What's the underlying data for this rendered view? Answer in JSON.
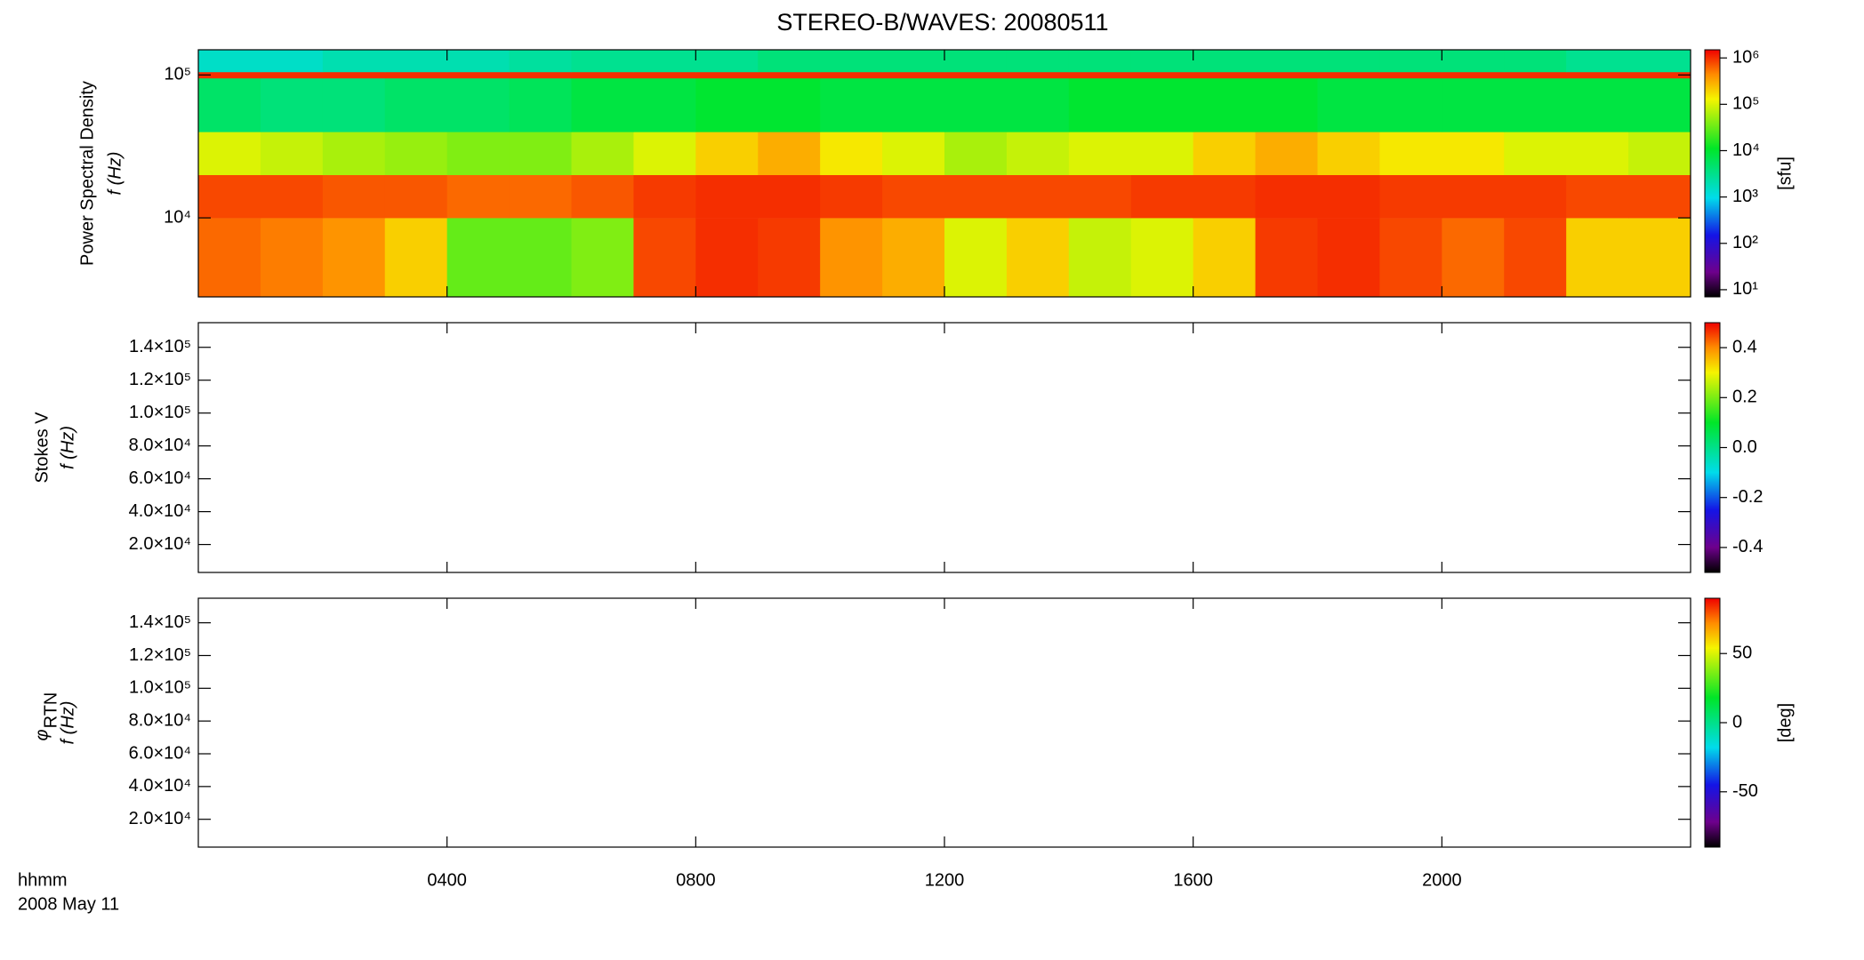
{
  "title": "STEREO-B/WAVES: 20080511",
  "time_axis": {
    "xlim": [
      0,
      24
    ],
    "xticks": [
      {
        "value": 4,
        "label": "0400"
      },
      {
        "value": 8,
        "label": "0800"
      },
      {
        "value": 12,
        "label": "1200"
      },
      {
        "value": 16,
        "label": "1600"
      },
      {
        "value": 20,
        "label": "2000"
      }
    ],
    "label": "hhmm",
    "date": "2008 May 11"
  },
  "chart_data": [
    {
      "type": "heatmap",
      "ylabel": "Power Spectral Density",
      "flabel": "f (Hz)",
      "yscale": "log",
      "ylim": [
        2800,
        150000
      ],
      "yticks": [
        {
          "value": 10000,
          "label": "10⁴"
        },
        {
          "value": 100000,
          "label": "10⁵"
        }
      ],
      "x_bins": [
        0,
        1,
        2,
        3,
        4,
        5,
        6,
        7,
        8,
        9,
        10,
        11,
        12,
        13,
        14,
        15,
        16,
        17,
        18,
        19,
        20,
        21,
        22,
        23,
        24
      ],
      "y_bins": [
        2800,
        10000,
        20000,
        40000,
        95000,
        105000,
        150000
      ],
      "values": [
        [
          600000,
          500000,
          400000,
          200000,
          30000,
          30000,
          40000,
          800000,
          1000000,
          900000,
          400000,
          300000,
          100000,
          200000,
          80000,
          100000,
          200000,
          900000,
          1000000,
          800000,
          600000,
          800000,
          200000,
          200000
        ],
        [
          800000,
          800000,
          700000,
          700000,
          600000,
          600000,
          700000,
          900000,
          1000000,
          1000000,
          900000,
          800000,
          800000,
          800000,
          800000,
          900000,
          900000,
          1000000,
          1000000,
          900000,
          900000,
          900000,
          800000,
          800000
        ],
        [
          100000,
          80000,
          60000,
          50000,
          40000,
          40000,
          60000,
          100000,
          200000,
          300000,
          150000,
          100000,
          60000,
          80000,
          100000,
          100000,
          200000,
          300000,
          200000,
          150000,
          150000,
          100000,
          100000,
          80000
        ],
        [
          5000,
          4000,
          4000,
          5000,
          5000,
          6000,
          8000,
          8000,
          10000,
          10000,
          8000,
          8000,
          8000,
          8000,
          10000,
          10000,
          10000,
          10000,
          8000,
          8000,
          8000,
          8000,
          8000,
          8000
        ],
        [
          1000000,
          1000000,
          1000000,
          1000000,
          1000000,
          1000000,
          1000000,
          1000000,
          1000000,
          1000000,
          1000000,
          1000000,
          1000000,
          1000000,
          1000000,
          1000000,
          1000000,
          1000000,
          1000000,
          1000000,
          1000000,
          1000000,
          1000000,
          1000000
        ],
        [
          1500,
          1500,
          2000,
          2000,
          2000,
          2500,
          3000,
          3000,
          3000,
          4000,
          4000,
          4000,
          4000,
          4000,
          4000,
          4000,
          4000,
          4000,
          4000,
          4000,
          4000,
          4000,
          3000,
          3000
        ]
      ],
      "zscale": "log",
      "zlim": [
        7,
        1500000
      ],
      "zticks": [
        {
          "value": 10,
          "label": "10¹"
        },
        {
          "value": 100,
          "label": "10²"
        },
        {
          "value": 1000,
          "label": "10³"
        },
        {
          "value": 10000,
          "label": "10⁴"
        },
        {
          "value": 100000,
          "label": "10⁵"
        },
        {
          "value": 1000000,
          "label": "10⁶"
        }
      ],
      "zlabel": "[sfu]",
      "colormap": "rainbow"
    },
    {
      "type": "heatmap",
      "ylabel": "Stokes V",
      "flabel": "f (Hz)",
      "yscale": "linear",
      "ylim": [
        3000,
        155000
      ],
      "yticks": [
        {
          "value": 20000,
          "label": "2.0×10⁴"
        },
        {
          "value": 40000,
          "label": "4.0×10⁴"
        },
        {
          "value": 60000,
          "label": "6.0×10⁴"
        },
        {
          "value": 80000,
          "label": "8.0×10⁴"
        },
        {
          "value": 100000,
          "label": "1.0×10⁵"
        },
        {
          "value": 120000,
          "label": "1.2×10⁵"
        },
        {
          "value": 140000,
          "label": "1.4×10⁵"
        }
      ],
      "zscale": "linear",
      "zlim": [
        -0.5,
        0.5
      ],
      "zticks": [
        -0.4,
        -0.2,
        {
          "value": 0,
          "label": "0.0"
        },
        0.2,
        0.4
      ],
      "colormap": "rainbow"
    },
    {
      "type": "heatmap",
      "ylabel": {
        "symbol": "φ",
        "subscript": "RTN"
      },
      "flabel": "f (Hz)",
      "yscale": "linear",
      "ylim": [
        3000,
        155000
      ],
      "yticks": [
        {
          "value": 20000,
          "label": "2.0×10⁴"
        },
        {
          "value": 40000,
          "label": "4.0×10⁴"
        },
        {
          "value": 60000,
          "label": "6.0×10⁴"
        },
        {
          "value": 80000,
          "label": "8.0×10⁴"
        },
        {
          "value": 100000,
          "label": "1.0×10⁵"
        },
        {
          "value": 120000,
          "label": "1.2×10⁵"
        },
        {
          "value": 140000,
          "label": "1.4×10⁵"
        }
      ],
      "zscale": "linear",
      "zlim": [
        -90,
        90
      ],
      "zticks": [
        -50,
        0,
        50
      ],
      "zlabel": "[deg]",
      "colormap": "rainbow"
    }
  ]
}
